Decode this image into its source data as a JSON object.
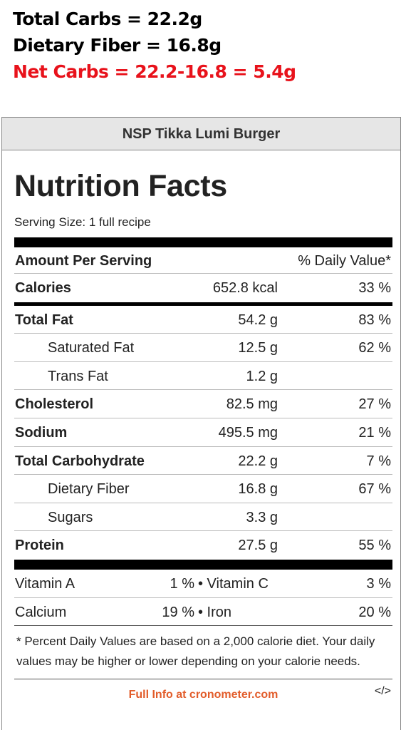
{
  "notes": {
    "total_carbs": "Total Carbs = 22.2g",
    "dietary_fiber": "Dietary Fiber = 16.8g",
    "net_carbs": "Net Carbs = 22.2-16.8 = 5.4g"
  },
  "label": {
    "recipe_name": "NSP Tikka Lumi Burger",
    "title": "Nutrition Facts",
    "serving_size": "Serving Size: 1 full recipe",
    "amount_per_serving": "Amount Per Serving",
    "daily_value_header": "% Daily Value*",
    "rows": [
      {
        "label": "Calories",
        "amount": "652.8 kcal",
        "dv": "33 %"
      },
      {
        "label": "Total Fat",
        "amount": "54.2 g",
        "dv": "83 %"
      },
      {
        "label": "Saturated Fat",
        "amount": "12.5 g",
        "dv": "62 %"
      },
      {
        "label": "Trans Fat",
        "amount": "1.2 g",
        "dv": ""
      },
      {
        "label": "Cholesterol",
        "amount": "82.5 mg",
        "dv": "27 %"
      },
      {
        "label": "Sodium",
        "amount": "495.5 mg",
        "dv": "21 %"
      },
      {
        "label": "Total Carbohydrate",
        "amount": "22.2 g",
        "dv": "7 %"
      },
      {
        "label": "Dietary Fiber",
        "amount": "16.8 g",
        "dv": "67 %"
      },
      {
        "label": "Sugars",
        "amount": "3.3 g",
        "dv": ""
      },
      {
        "label": "Protein",
        "amount": "27.5 g",
        "dv": "55 %"
      }
    ],
    "vitamins": [
      {
        "left_label": "Vitamin A",
        "left_pct": "1 %",
        "right_label": "• Vitamin C",
        "right_pct": "3 %"
      },
      {
        "left_label": "Calcium",
        "left_pct": "19 %",
        "right_label": "• Iron",
        "right_pct": "20 %"
      }
    ],
    "footnote": "* Percent Daily Values are based on a 2,000 calorie diet. Your daily values may be higher or lower depending on your calorie needs.",
    "full_info_link": "Full Info at cronometer.com",
    "embed_icon": "</>"
  }
}
